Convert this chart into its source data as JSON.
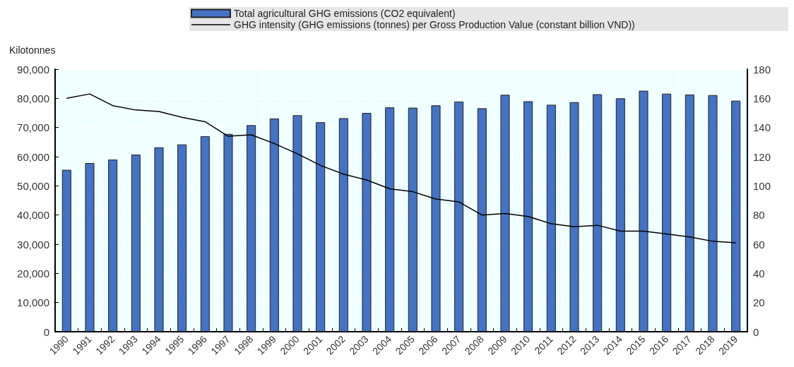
{
  "chart_data": {
    "type": "bar",
    "ylabel": "Kilotonnes",
    "categories": [
      "1990",
      "1991",
      "1992",
      "1993",
      "1994",
      "1995",
      "1996",
      "1997",
      "1998",
      "1999",
      "2000",
      "2001",
      "2002",
      "2003",
      "2004",
      "2005",
      "2006",
      "2007",
      "2008",
      "2009",
      "2010",
      "2011",
      "2012",
      "2013",
      "2014",
      "2015",
      "2016",
      "2017",
      "2018",
      "2019"
    ],
    "series": [
      {
        "name": "Total agricultural GHG emissions (CO2 equivalent)",
        "color": "#4472c4",
        "values": [
          55500,
          57800,
          59000,
          60700,
          63200,
          64200,
          67000,
          67800,
          70800,
          73100,
          74200,
          71800,
          73200,
          75000,
          76900,
          76800,
          77600,
          78900,
          76600,
          81200,
          79000,
          77800,
          78700,
          81400,
          80000,
          82600,
          81600,
          81300,
          81100,
          79200
        ]
      },
      {
        "name": "GHG intensity (GHG emissions (tonnes) per Gross Production Value (constant billion VND))",
        "type": "line",
        "axis": "y2",
        "color": "#000000",
        "values": [
          160,
          163,
          155,
          152,
          151,
          147,
          144,
          134,
          135,
          129,
          122,
          114,
          108,
          104,
          98,
          96,
          91,
          89,
          80,
          81,
          79,
          74,
          72,
          73,
          69,
          69,
          67,
          65,
          62,
          61
        ]
      }
    ],
    "ylim": [
      0,
      90000
    ],
    "yticks": [
      0,
      {
        "value": 10000,
        "label": "10,000"
      },
      {
        "value": 20000,
        "label": "20,000"
      },
      {
        "value": 30000,
        "label": "30,000"
      },
      {
        "value": 40000,
        "label": "40,000"
      },
      {
        "value": 50000,
        "label": "50,000"
      },
      {
        "value": 60000,
        "label": "60,000"
      },
      {
        "value": 70000,
        "label": "70,000"
      },
      {
        "value": 80000,
        "label": "80,000"
      },
      {
        "value": 90000,
        "label": "90,000"
      }
    ],
    "y2lim": [
      0,
      180
    ],
    "y2ticks": [
      0,
      20,
      40,
      60,
      80,
      100,
      120,
      140,
      160,
      180
    ],
    "grid": true,
    "legend": "top",
    "marker": "none",
    "line_style": "solid"
  }
}
